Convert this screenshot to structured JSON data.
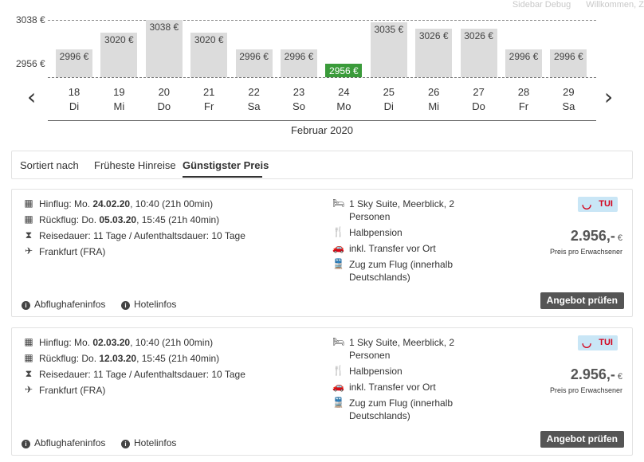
{
  "topbar": {
    "sidebar_debug": "Sidebar Debug",
    "welcome": "Willkommen, Z"
  },
  "chart_data": {
    "type": "bar",
    "title": "",
    "categories": [
      "18 Di",
      "19 Mi",
      "20 Do",
      "21 Fr",
      "22 Sa",
      "23 So",
      "24 Mo",
      "25 Di",
      "26 Mi",
      "27 Do",
      "28 Fr",
      "29 Sa"
    ],
    "values": [
      2996,
      3020,
      3038,
      3020,
      2996,
      2996,
      2956,
      3035,
      3026,
      3026,
      2996,
      2996
    ],
    "value_labels": [
      "2996 €",
      "3020 €",
      "3038 €",
      "3020 €",
      "2996 €",
      "2996 €",
      "2956 €",
      "3035 €",
      "3026 €",
      "3026 €",
      "2996 €",
      "2996 €"
    ],
    "day_numbers": [
      "18",
      "19",
      "20",
      "21",
      "22",
      "23",
      "24",
      "25",
      "26",
      "27",
      "28",
      "29"
    ],
    "weekdays": [
      "Di",
      "Mi",
      "Do",
      "Fr",
      "Sa",
      "So",
      "Mo",
      "Di",
      "Mi",
      "Do",
      "Fr",
      "Sa"
    ],
    "selected_index": 6,
    "ylim": [
      2956,
      3038
    ],
    "ytick_labels": [
      "3038 €",
      "2956 €"
    ],
    "xlabel": "Februar 2020",
    "colors": {
      "bar": "#dcdcdc",
      "selected": "#3a9b3a"
    }
  },
  "sort": {
    "label": "Sortiert nach",
    "options": [
      "Früheste Hinreise",
      "Günstigster Preis"
    ],
    "active": "Günstigster Preis"
  },
  "offers": [
    {
      "outbound_prefix": "Hinflug: Mo. ",
      "outbound_date": "24.02.20",
      "outbound_suffix": ", 10:40 (21h 00min)",
      "return_prefix": "Rückflug: Do. ",
      "return_date": "05.03.20",
      "return_suffix": ", 15:45 (21h 40min)",
      "duration": "Reisedauer: 11 Tage / Aufenthaltsdauer: 10 Tage",
      "airport": "Frankfurt (FRA)",
      "room_line1": "1 Sky Suite, Meerblick, 2",
      "room_line2": "Personen",
      "board": "Halbpension",
      "transfer": "inkl. Transfer vor Ort",
      "train_line1": "Zug zum Flug (innerhalb",
      "train_line2": "Deutschlands)",
      "operator": "TUI",
      "price": "2.956,-",
      "currency": "€",
      "price_note": "Preis pro Erwachsener",
      "airport_info": "Abflughafeninfos",
      "hotel_info": "Hotelinfos",
      "cta": "Angebot prüfen"
    },
    {
      "outbound_prefix": "Hinflug: Mo. ",
      "outbound_date": "02.03.20",
      "outbound_suffix": ", 10:40 (21h 00min)",
      "return_prefix": "Rückflug: Do. ",
      "return_date": "12.03.20",
      "return_suffix": ", 15:45 (21h 40min)",
      "duration": "Reisedauer: 11 Tage / Aufenthaltsdauer: 10 Tage",
      "airport": "Frankfurt (FRA)",
      "room_line1": "1 Sky Suite, Meerblick, 2",
      "room_line2": "Personen",
      "board": "Halbpension",
      "transfer": "inkl. Transfer vor Ort",
      "train_line1": "Zug zum Flug (innerhalb",
      "train_line2": "Deutschlands)",
      "operator": "TUI",
      "price": "2.956,-",
      "currency": "€",
      "price_note": "Preis pro Erwachsener",
      "airport_info": "Abflughafeninfos",
      "hotel_info": "Hotelinfos",
      "cta": "Angebot prüfen"
    }
  ]
}
